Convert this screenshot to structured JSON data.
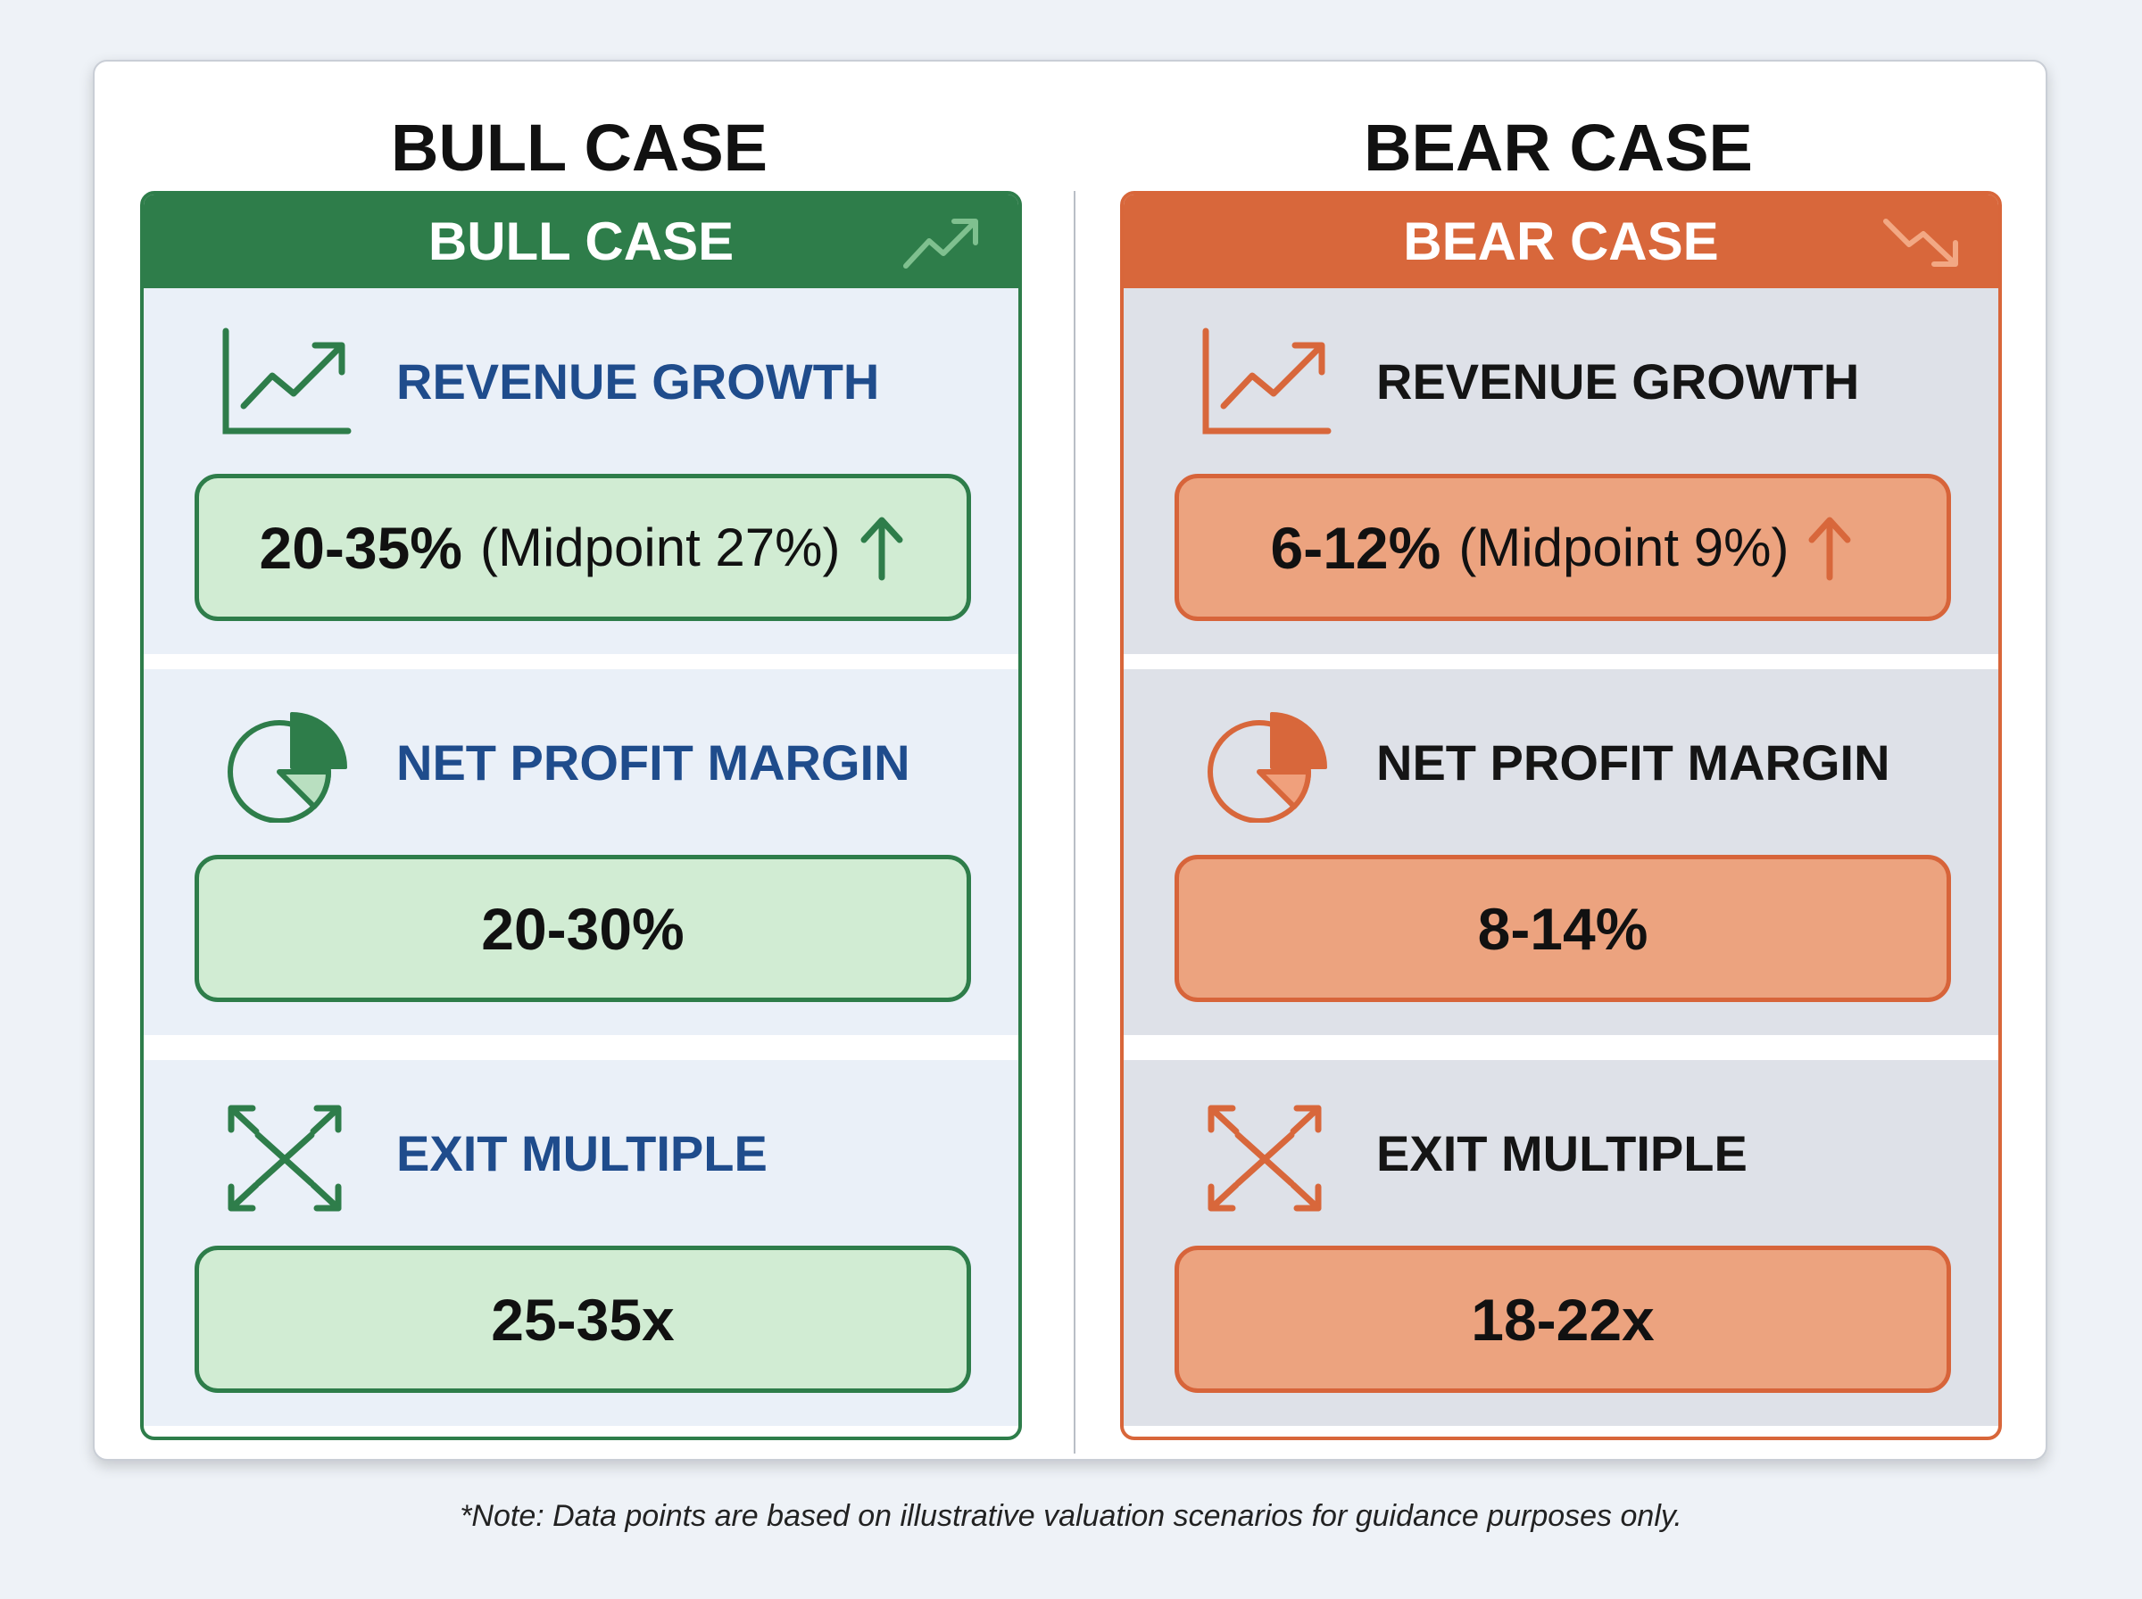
{
  "colors": {
    "bull_primary": "#2e7d4a",
    "bull_value_fill": "#d1ecd3",
    "bull_label": "#1f4c8c",
    "bear_primary": "#d8673b",
    "bear_value_fill": "#eca37f",
    "background": "#eef2f7"
  },
  "bull": {
    "title": "BULL CASE",
    "header": "BULL CASE",
    "header_icon": "trend-up-icon",
    "metrics": [
      {
        "label": "REVENUE GROWTH",
        "icon": "line-chart-icon",
        "value": "20-35%",
        "detail": "(Midpoint 27%)",
        "arrow": "up-arrow-icon"
      },
      {
        "label": "NET PROFIT MARGIN",
        "icon": "pie-chart-icon",
        "value": "20-30%"
      },
      {
        "label": "EXIT MULTIPLE",
        "icon": "expand-arrows-icon",
        "value": "25-35x"
      }
    ]
  },
  "bear": {
    "title": "BEAR CASE",
    "header": "BEAR CASE",
    "header_icon": "trend-down-icon",
    "metrics": [
      {
        "label": "REVENUE GROWTH",
        "icon": "line-chart-icon",
        "value": "6-12%",
        "detail": "(Midpoint 9%)",
        "arrow": "up-arrow-icon"
      },
      {
        "label": "NET PROFIT MARGIN",
        "icon": "pie-chart-icon",
        "value": "8-14%"
      },
      {
        "label": "EXIT MULTIPLE",
        "icon": "expand-arrows-icon",
        "value": "18-22x"
      }
    ]
  },
  "note": "*Note: Data points are based on illustrative valuation scenarios for guidance purposes only."
}
